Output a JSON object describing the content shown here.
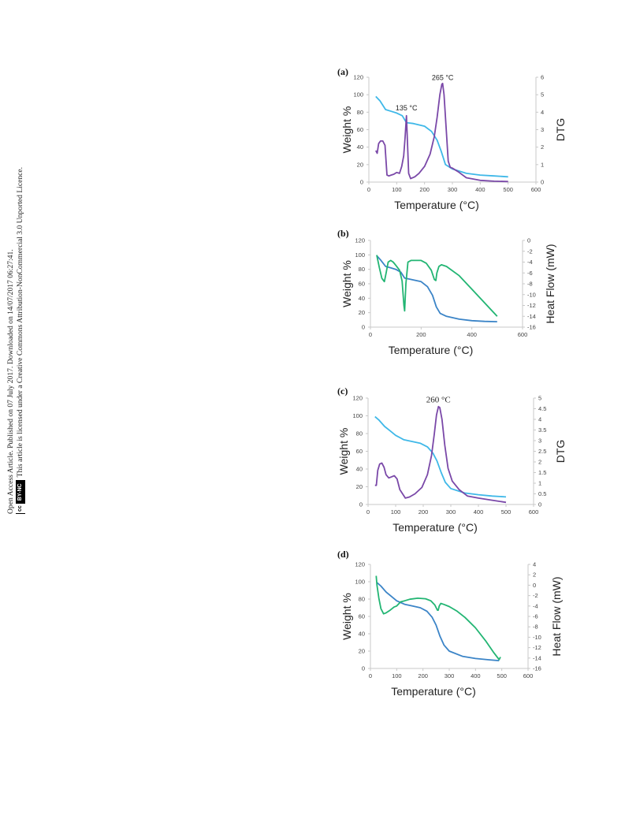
{
  "side_notice": {
    "line1": "Open Access Article. Published on 07 July 2017. Downloaded on 14/07/2017 06:27:41.",
    "line2": "This article is licensed under a Creative Commons Attribution-NonCommercial 3.0 Unported Licence.",
    "badge_cc": "cc",
    "badge_license": "BY-NC"
  },
  "colors": {
    "weight": "#3fb8e8",
    "weight_dark": "#3b84c7",
    "dtg": "#7a48a8",
    "heat_flow": "#22b573"
  },
  "chart_data": [
    {
      "panel": "(a)",
      "type": "line",
      "xlabel": "Temperature (°C)",
      "ylabel_left": "Weight %",
      "ylabel_right": "DTG",
      "xlim": [
        0,
        600
      ],
      "ylim_left": [
        0,
        120
      ],
      "ylim_right": [
        0,
        6
      ],
      "x_ticks": [
        "0",
        "100",
        "200",
        "300",
        "400",
        "500",
        "600"
      ],
      "y_ticks_left": [
        "0",
        "20",
        "40",
        "60",
        "80",
        "100",
        "120"
      ],
      "y_ticks_right": [
        "0",
        "1",
        "2",
        "3",
        "4",
        "5",
        "6"
      ],
      "annotations": [
        {
          "text": "135 °C",
          "x": 135,
          "y_right": 4.1
        },
        {
          "text": "265 °C",
          "x": 265,
          "y_right": 5.85
        }
      ],
      "series": [
        {
          "axis": "left",
          "color_key": "weight",
          "points": [
            [
              25,
              98
            ],
            [
              40,
              93
            ],
            [
              60,
              83
            ],
            [
              80,
              81
            ],
            [
              100,
              79
            ],
            [
              120,
              76
            ],
            [
              135,
              68
            ],
            [
              160,
              67
            ],
            [
              200,
              64
            ],
            [
              225,
              58
            ],
            [
              245,
              48
            ],
            [
              260,
              35
            ],
            [
              275,
              20
            ],
            [
              300,
              15
            ],
            [
              350,
              10
            ],
            [
              400,
              8
            ],
            [
              450,
              7
            ],
            [
              500,
              6
            ]
          ]
        },
        {
          "axis": "right",
          "color_key": "dtg",
          "points": [
            [
              25,
              1.8
            ],
            [
              30,
              1.65
            ],
            [
              35,
              2.2
            ],
            [
              42,
              2.35
            ],
            [
              50,
              2.35
            ],
            [
              58,
              2.1
            ],
            [
              65,
              0.4
            ],
            [
              72,
              0.35
            ],
            [
              80,
              0.4
            ],
            [
              90,
              0.45
            ],
            [
              100,
              0.55
            ],
            [
              110,
              0.5
            ],
            [
              118,
              0.9
            ],
            [
              125,
              1.5
            ],
            [
              130,
              2.5
            ],
            [
              133,
              3.3
            ],
            [
              135,
              3.8
            ],
            [
              138,
              2.5
            ],
            [
              143,
              0.5
            ],
            [
              150,
              0.2
            ],
            [
              165,
              0.3
            ],
            [
              180,
              0.5
            ],
            [
              200,
              0.9
            ],
            [
              220,
              1.6
            ],
            [
              235,
              2.6
            ],
            [
              245,
              3.7
            ],
            [
              255,
              5.0
            ],
            [
              262,
              5.6
            ],
            [
              265,
              5.65
            ],
            [
              270,
              5.0
            ],
            [
              278,
              3.0
            ],
            [
              285,
              1.2
            ],
            [
              292,
              0.85
            ],
            [
              300,
              0.8
            ],
            [
              320,
              0.6
            ],
            [
              350,
              0.25
            ],
            [
              400,
              0.1
            ],
            [
              450,
              0.05
            ],
            [
              500,
              0.03
            ]
          ]
        }
      ]
    },
    {
      "panel": "(b)",
      "type": "line",
      "xlabel": "Temperature (°C)",
      "ylabel_left": "Weight %",
      "ylabel_right": "Heat Flow (mW)",
      "xlim": [
        0,
        600
      ],
      "ylim_left": [
        0,
        120
      ],
      "ylim_right": [
        -16,
        0
      ],
      "x_ticks": [
        "0",
        "200",
        "400",
        "600"
      ],
      "y_ticks_left": [
        "0",
        "20",
        "40",
        "60",
        "80",
        "100",
        "120"
      ],
      "y_ticks_right": [
        "-16",
        "-14",
        "-12",
        "-10",
        "-8",
        "-6",
        "-4",
        "-2",
        "0"
      ],
      "annotations": [],
      "series": [
        {
          "axis": "left",
          "color_key": "weight_dark",
          "points": [
            [
              25,
              99
            ],
            [
              40,
              93
            ],
            [
              60,
              84
            ],
            [
              80,
              82
            ],
            [
              100,
              80
            ],
            [
              120,
              76
            ],
            [
              135,
              68
            ],
            [
              160,
              66
            ],
            [
              200,
              63
            ],
            [
              225,
              56
            ],
            [
              245,
              44
            ],
            [
              260,
              28
            ],
            [
              275,
              19
            ],
            [
              300,
              15
            ],
            [
              350,
              11
            ],
            [
              400,
              9
            ],
            [
              450,
              8
            ],
            [
              500,
              7.5
            ]
          ]
        },
        {
          "axis": "right",
          "color_key": "heat_flow",
          "points": [
            [
              25,
              -2.7
            ],
            [
              35,
              -5
            ],
            [
              45,
              -7
            ],
            [
              55,
              -7.6
            ],
            [
              62,
              -6
            ],
            [
              70,
              -4
            ],
            [
              80,
              -3.7
            ],
            [
              90,
              -4
            ],
            [
              100,
              -4.6
            ],
            [
              115,
              -5.5
            ],
            [
              125,
              -7.5
            ],
            [
              132,
              -12
            ],
            [
              135,
              -13
            ],
            [
              140,
              -8
            ],
            [
              148,
              -4
            ],
            [
              160,
              -3.7
            ],
            [
              200,
              -3.7
            ],
            [
              220,
              -4.2
            ],
            [
              240,
              -5.5
            ],
            [
              252,
              -7.2
            ],
            [
              258,
              -7.4
            ],
            [
              262,
              -6
            ],
            [
              270,
              -4.8
            ],
            [
              280,
              -4.5
            ],
            [
              300,
              -4.8
            ],
            [
              350,
              -6.5
            ],
            [
              400,
              -9
            ],
            [
              450,
              -11.5
            ],
            [
              500,
              -14
            ]
          ]
        }
      ]
    },
    {
      "panel": "(c)",
      "type": "line",
      "xlabel": "Temperature (°C)",
      "ylabel_left": "Weight %",
      "ylabel_right": "DTG",
      "xlim": [
        0,
        600
      ],
      "ylim_left": [
        0,
        120
      ],
      "ylim_right": [
        0,
        5
      ],
      "x_ticks": [
        "0",
        "100",
        "200",
        "300",
        "400",
        "500",
        "600"
      ],
      "y_ticks_left": [
        "0",
        "20",
        "40",
        "60",
        "80",
        "100",
        "120"
      ],
      "y_ticks_right": [
        "0",
        "0.5",
        "1",
        "1.5",
        "2",
        "2.5",
        "3",
        "3.5",
        "4",
        "4.5",
        "5"
      ],
      "annotations": [
        {
          "text": "260 °C",
          "x": 255,
          "y_right": 4.8
        }
      ],
      "series": [
        {
          "axis": "left",
          "color_key": "weight",
          "points": [
            [
              25,
              99
            ],
            [
              40,
              95
            ],
            [
              60,
              88
            ],
            [
              80,
              83
            ],
            [
              100,
              78
            ],
            [
              130,
              73
            ],
            [
              160,
              71
            ],
            [
              190,
              69
            ],
            [
              215,
              65
            ],
            [
              235,
              58
            ],
            [
              250,
              49
            ],
            [
              265,
              36
            ],
            [
              280,
              25
            ],
            [
              300,
              18
            ],
            [
              350,
              13
            ],
            [
              400,
              11
            ],
            [
              450,
              9.5
            ],
            [
              500,
              8.5
            ]
          ]
        },
        {
          "axis": "right",
          "color_key": "dtg",
          "points": [
            [
              25,
              0.9
            ],
            [
              30,
              0.9
            ],
            [
              35,
              1.6
            ],
            [
              42,
              1.9
            ],
            [
              50,
              1.95
            ],
            [
              58,
              1.75
            ],
            [
              65,
              1.4
            ],
            [
              75,
              1.25
            ],
            [
              85,
              1.3
            ],
            [
              95,
              1.35
            ],
            [
              105,
              1.2
            ],
            [
              115,
              0.7
            ],
            [
              125,
              0.5
            ],
            [
              135,
              0.3
            ],
            [
              150,
              0.35
            ],
            [
              170,
              0.5
            ],
            [
              195,
              0.8
            ],
            [
              215,
              1.4
            ],
            [
              230,
              2.3
            ],
            [
              240,
              3.3
            ],
            [
              248,
              4.2
            ],
            [
              255,
              4.6
            ],
            [
              260,
              4.55
            ],
            [
              268,
              4
            ],
            [
              278,
              2.8
            ],
            [
              290,
              1.7
            ],
            [
              305,
              1.1
            ],
            [
              330,
              0.7
            ],
            [
              360,
              0.4
            ],
            [
              400,
              0.3
            ],
            [
              450,
              0.2
            ],
            [
              500,
              0.1
            ]
          ]
        }
      ]
    },
    {
      "panel": "(d)",
      "type": "line",
      "xlabel": "Temperature (°C)",
      "ylabel_left": "Weight %",
      "ylabel_right": "Heat Flow (mW)",
      "xlim": [
        0,
        600
      ],
      "ylim_left": [
        0,
        120
      ],
      "ylim_right": [
        -16,
        4
      ],
      "x_ticks": [
        "0",
        "100",
        "200",
        "300",
        "400",
        "500",
        "600"
      ],
      "y_ticks_left": [
        "0",
        "20",
        "40",
        "60",
        "80",
        "100",
        "120"
      ],
      "y_ticks_right": [
        "-16",
        "-14",
        "-12",
        "-10",
        "-8",
        "-6",
        "-4",
        "-2",
        "0",
        "2",
        "4"
      ],
      "annotations": [],
      "series": [
        {
          "axis": "left",
          "color_key": "weight_dark",
          "points": [
            [
              25,
              99
            ],
            [
              40,
              95
            ],
            [
              60,
              88
            ],
            [
              80,
              83
            ],
            [
              100,
              78
            ],
            [
              130,
              74
            ],
            [
              160,
              72
            ],
            [
              190,
              70
            ],
            [
              215,
              66
            ],
            [
              235,
              59
            ],
            [
              250,
              50
            ],
            [
              265,
              37
            ],
            [
              280,
              27
            ],
            [
              300,
              20
            ],
            [
              350,
              14
            ],
            [
              400,
              11.5
            ],
            [
              450,
              10
            ],
            [
              490,
              9
            ]
          ]
        },
        {
          "axis": "right",
          "color_key": "heat_flow",
          "points": [
            [
              22,
              1.8
            ],
            [
              25,
              0
            ],
            [
              32,
              -2.5
            ],
            [
              40,
              -4.5
            ],
            [
              50,
              -5.5
            ],
            [
              60,
              -5.3
            ],
            [
              75,
              -4.8
            ],
            [
              90,
              -4.2
            ],
            [
              100,
              -4
            ],
            [
              115,
              -3.2
            ],
            [
              130,
              -3
            ],
            [
              150,
              -2.7
            ],
            [
              180,
              -2.5
            ],
            [
              210,
              -2.6
            ],
            [
              230,
              -3
            ],
            [
              245,
              -3.8
            ],
            [
              255,
              -4.8
            ],
            [
              258,
              -4.8
            ],
            [
              262,
              -4
            ],
            [
              268,
              -3.5
            ],
            [
              280,
              -3.7
            ],
            [
              300,
              -4.1
            ],
            [
              330,
              -5
            ],
            [
              360,
              -6.2
            ],
            [
              400,
              -8.2
            ],
            [
              440,
              -10.8
            ],
            [
              470,
              -13
            ],
            [
              490,
              -14.3
            ],
            [
              495,
              -13.8
            ]
          ]
        }
      ]
    }
  ]
}
